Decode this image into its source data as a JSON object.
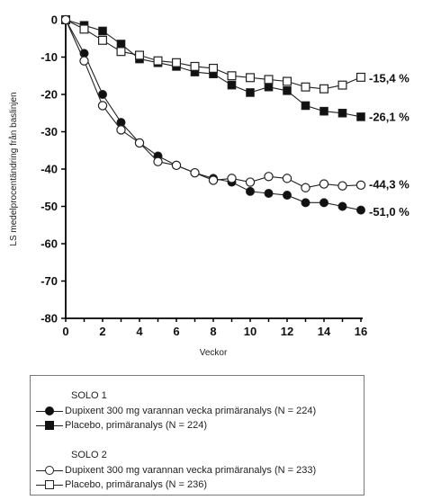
{
  "chart_data": {
    "type": "line",
    "title": "",
    "xlabel": "Veckor",
    "ylabel": "LS medelprocentändring från baslinjen",
    "xlim": [
      0,
      16
    ],
    "ylim": [
      -80,
      0
    ],
    "xticks": [
      0,
      2,
      4,
      6,
      8,
      10,
      12,
      14,
      16
    ],
    "yticks": [
      0,
      -10,
      -20,
      -30,
      -40,
      -50,
      -60,
      -70,
      -80
    ],
    "grid": false,
    "legend_position": "bottom",
    "x": [
      0,
      1,
      2,
      3,
      4,
      5,
      6,
      7,
      8,
      9,
      10,
      11,
      12,
      13,
      14,
      15,
      16
    ],
    "series": [
      {
        "name": "Dupixent 300 mg varannan vecka primäranalys (N = 224)",
        "group": "SOLO 1",
        "marker": "filled-circle",
        "values": [
          0,
          -9,
          -20,
          -27.5,
          -33,
          -36.5,
          -39,
          -41,
          -42.5,
          -43.5,
          -46,
          -46.5,
          -47,
          -49,
          -49,
          -50,
          -51
        ],
        "end_label": "-51,0 %"
      },
      {
        "name": "Placebo, primäranalys (N = 224)",
        "group": "SOLO 1",
        "marker": "filled-square",
        "values": [
          0,
          -1.5,
          -3,
          -6.5,
          -10.5,
          -11.5,
          -12.5,
          -14,
          -14.5,
          -17.5,
          -19.5,
          -18,
          -19,
          -23,
          -24.5,
          -25,
          -26
        ],
        "end_label": "-26,1 %"
      },
      {
        "name": "Dupixent 300 mg varannan vecka primäranalys (N = 233)",
        "group": "SOLO 2",
        "marker": "open-circle",
        "values": [
          0,
          -11,
          -23,
          -29.5,
          -33,
          -38,
          -39,
          -41,
          -43,
          -42.5,
          -43.5,
          -42,
          -42.5,
          -45,
          -44,
          -44.5,
          -44.3
        ],
        "end_label": "-44,3 %"
      },
      {
        "name": "Placebo, primäranalys (N = 236)",
        "group": "SOLO 2",
        "marker": "open-square",
        "values": [
          0,
          -2.5,
          -5.5,
          -8.5,
          -9.5,
          -11,
          -11.5,
          -12.5,
          -13,
          -15,
          -15.5,
          -16,
          -16.5,
          -18,
          -18.5,
          -17.5,
          -15.4
        ],
        "end_label": "-15,4 %"
      }
    ]
  },
  "legend": {
    "groups": [
      {
        "heading": "SOLO 1",
        "items": [
          {
            "label": "Dupixent 300 mg varannan vecka primäranalys (N = 224)",
            "marker": "filled-circle"
          },
          {
            "label": "Placebo, primäranalys (N = 224)",
            "marker": "filled-square"
          }
        ]
      },
      {
        "heading": "SOLO 2",
        "items": [
          {
            "label": "Dupixent 300 mg varannan vecka primäranalys (N = 233)",
            "marker": "open-circle"
          },
          {
            "label": "Placebo, primäranalys (N = 236)",
            "marker": "open-square"
          }
        ]
      }
    ]
  }
}
